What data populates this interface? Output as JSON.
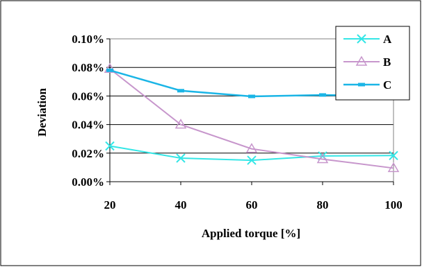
{
  "chart_data": {
    "type": "line",
    "title": "",
    "xlabel": "Applied torque [%]",
    "ylabel": "Deviation",
    "x": [
      20,
      40,
      60,
      80,
      100
    ],
    "x_tick_labels": [
      "20",
      "40",
      "60",
      "80",
      "100"
    ],
    "ylim": [
      0,
      0.001
    ],
    "y_ticks": [
      0,
      0.0002,
      0.0004,
      0.0006,
      0.0008,
      0.001
    ],
    "y_tick_labels": [
      "0.00%",
      "0.02%",
      "0.04%",
      "0.06%",
      "0.08%",
      "0.10%"
    ],
    "grid": "horizontal",
    "legend": "top-right",
    "series": [
      {
        "name": "A",
        "marker": "x",
        "color": "#33E6E6",
        "values": [
          0.00025,
          0.000165,
          0.00015,
          0.00018,
          0.000183
        ]
      },
      {
        "name": "B",
        "marker": "triangle",
        "color": "#C796CC",
        "values": [
          0.00079,
          0.0004,
          0.00023,
          0.000158,
          9.5e-05
        ]
      },
      {
        "name": "C",
        "marker": "dash",
        "color": "#1AB5E6",
        "values": [
          0.00078,
          0.000637,
          0.000597,
          0.000607,
          0.0006
        ]
      }
    ]
  }
}
